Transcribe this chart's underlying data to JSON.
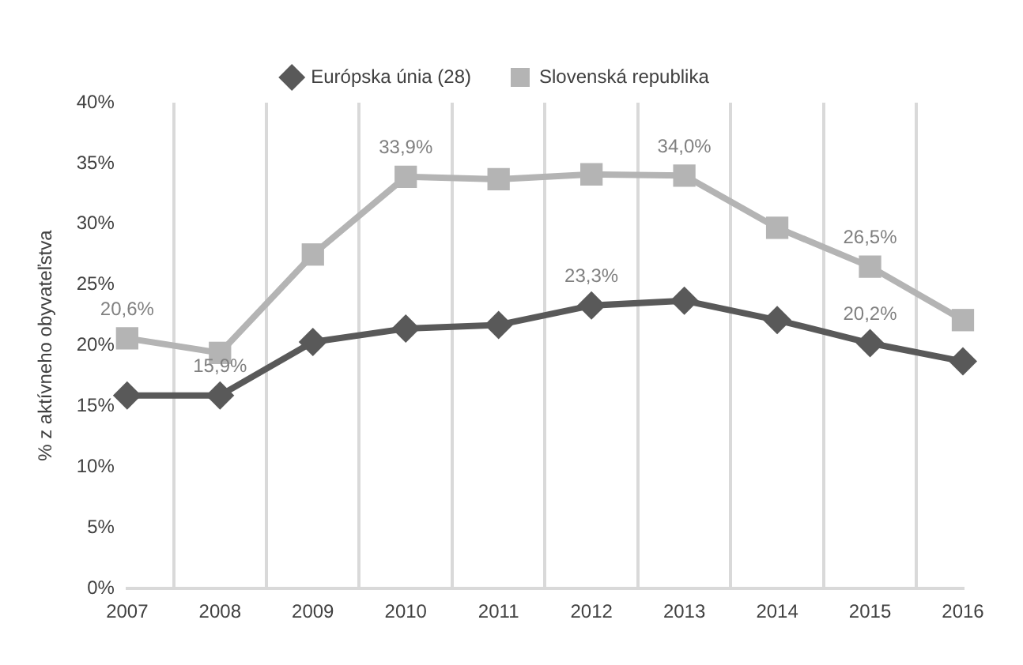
{
  "chart_data": {
    "type": "line",
    "ylabel": "% z aktívneho obyvateľstva",
    "categories": [
      "2007",
      "2008",
      "2009",
      "2010",
      "2011",
      "2012",
      "2013",
      "2014",
      "2015",
      "2016"
    ],
    "series": [
      {
        "name": "Európska únia (28)",
        "color": "#595959",
        "marker": "diamond",
        "values": [
          15.9,
          15.9,
          20.3,
          21.4,
          21.7,
          23.3,
          23.7,
          22.1,
          20.2,
          18.7
        ],
        "value_labels": [
          null,
          "15,9%",
          null,
          null,
          null,
          "23,3%",
          null,
          null,
          "20,2%",
          null
        ]
      },
      {
        "name": "Slovenská republika",
        "color": "#b4b4b4",
        "marker": "square",
        "values": [
          20.6,
          19.4,
          27.5,
          33.9,
          33.7,
          34.1,
          34.0,
          29.7,
          26.5,
          22.1
        ],
        "value_labels": [
          "20,6%",
          null,
          null,
          "33,9%",
          null,
          null,
          "34,0%",
          null,
          "26,5%",
          null
        ]
      }
    ],
    "ylim": [
      0,
      40
    ],
    "yticks": [
      {
        "value": 0,
        "label": "0%"
      },
      {
        "value": 5,
        "label": "5%"
      },
      {
        "value": 10,
        "label": "10%"
      },
      {
        "value": 15,
        "label": "15%"
      },
      {
        "value": 20,
        "label": "20%"
      },
      {
        "value": 25,
        "label": "25%"
      },
      {
        "value": 30,
        "label": "30%"
      },
      {
        "value": 35,
        "label": "35%"
      },
      {
        "value": 40,
        "label": "40%"
      }
    ],
    "grid": "x",
    "legend": "top",
    "line_style": "solid"
  }
}
